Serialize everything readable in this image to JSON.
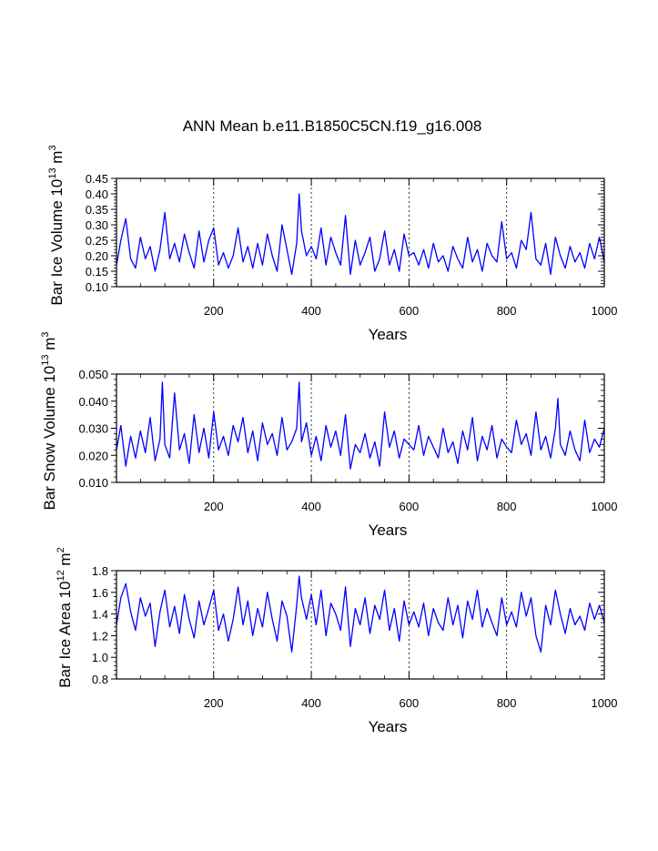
{
  "title": "ANN Mean b.e11.B1850C5CN.f19_g16.008",
  "colors": {
    "series": "#0000ff",
    "axis": "#000000",
    "grid": "#000000"
  },
  "chart_data": [
    {
      "type": "line",
      "ylabel": {
        "main": "Bar Ice Volume 10",
        "exp": "13",
        "unit": " m",
        "unitexp": "3"
      },
      "xlabel": "Years",
      "xlim": [
        1,
        1000
      ],
      "ylim": [
        0.1,
        0.45
      ],
      "xticks": [
        200,
        400,
        600,
        800,
        1000
      ],
      "xtick_labels": [
        "200",
        "400",
        "600",
        "800",
        "1000"
      ],
      "yticks": [
        0.1,
        0.15,
        0.2,
        0.25,
        0.3,
        0.35,
        0.4,
        0.45
      ],
      "ytick_labels": [
        "0.10",
        "0.15",
        "0.20",
        "0.25",
        "0.30",
        "0.35",
        "0.40",
        "0.45"
      ],
      "grid_x": [
        200,
        400,
        600,
        800
      ],
      "series": [
        {
          "name": "Bar Ice Volume",
          "x": [
            1,
            10,
            20,
            30,
            40,
            50,
            60,
            70,
            80,
            90,
            100,
            110,
            120,
            130,
            140,
            150,
            160,
            170,
            180,
            190,
            200,
            210,
            220,
            230,
            240,
            250,
            260,
            270,
            280,
            290,
            300,
            310,
            320,
            330,
            340,
            350,
            360,
            370,
            375,
            380,
            390,
            400,
            410,
            420,
            430,
            440,
            450,
            460,
            470,
            480,
            490,
            500,
            510,
            520,
            530,
            540,
            550,
            560,
            570,
            580,
            590,
            600,
            610,
            620,
            630,
            640,
            650,
            660,
            670,
            680,
            690,
            700,
            710,
            720,
            730,
            740,
            750,
            760,
            770,
            780,
            790,
            800,
            810,
            820,
            830,
            840,
            850,
            860,
            870,
            880,
            890,
            900,
            910,
            920,
            930,
            940,
            950,
            960,
            970,
            980,
            990,
            1000
          ],
          "y": [
            0.17,
            0.25,
            0.32,
            0.19,
            0.16,
            0.26,
            0.19,
            0.23,
            0.15,
            0.22,
            0.34,
            0.19,
            0.24,
            0.18,
            0.27,
            0.21,
            0.16,
            0.28,
            0.18,
            0.25,
            0.29,
            0.17,
            0.21,
            0.16,
            0.2,
            0.29,
            0.18,
            0.23,
            0.16,
            0.24,
            0.17,
            0.27,
            0.2,
            0.15,
            0.3,
            0.22,
            0.14,
            0.24,
            0.4,
            0.28,
            0.2,
            0.23,
            0.19,
            0.29,
            0.17,
            0.26,
            0.21,
            0.17,
            0.33,
            0.14,
            0.25,
            0.17,
            0.21,
            0.26,
            0.15,
            0.19,
            0.28,
            0.17,
            0.22,
            0.15,
            0.27,
            0.2,
            0.21,
            0.17,
            0.22,
            0.16,
            0.24,
            0.18,
            0.2,
            0.15,
            0.23,
            0.19,
            0.16,
            0.26,
            0.18,
            0.22,
            0.15,
            0.24,
            0.2,
            0.18,
            0.31,
            0.19,
            0.21,
            0.16,
            0.25,
            0.22,
            0.34,
            0.19,
            0.17,
            0.24,
            0.14,
            0.26,
            0.2,
            0.16,
            0.23,
            0.18,
            0.21,
            0.16,
            0.24,
            0.19,
            0.26,
            0.18
          ]
        }
      ]
    },
    {
      "type": "line",
      "ylabel": {
        "main": "Bar Snow Volume 10",
        "exp": "13",
        "unit": " m",
        "unitexp": "3"
      },
      "xlabel": "Years",
      "xlim": [
        1,
        1000
      ],
      "ylim": [
        0.01,
        0.05
      ],
      "xticks": [
        200,
        400,
        600,
        800,
        1000
      ],
      "xtick_labels": [
        "200",
        "400",
        "600",
        "800",
        "1000"
      ],
      "yticks": [
        0.01,
        0.02,
        0.03,
        0.04,
        0.05
      ],
      "ytick_labels": [
        "0.010",
        "0.020",
        "0.030",
        "0.040",
        "0.050"
      ],
      "grid_x": [
        200,
        400,
        600,
        800
      ],
      "series": [
        {
          "name": "Bar Snow Volume",
          "x": [
            1,
            10,
            20,
            30,
            40,
            50,
            60,
            70,
            80,
            90,
            95,
            100,
            110,
            120,
            130,
            140,
            150,
            160,
            170,
            180,
            190,
            200,
            210,
            220,
            230,
            240,
            250,
            260,
            270,
            280,
            290,
            300,
            310,
            320,
            330,
            340,
            350,
            360,
            370,
            375,
            380,
            390,
            400,
            410,
            420,
            430,
            440,
            450,
            460,
            470,
            480,
            490,
            500,
            510,
            520,
            530,
            540,
            550,
            560,
            570,
            580,
            590,
            600,
            610,
            620,
            630,
            640,
            650,
            660,
            670,
            680,
            690,
            700,
            710,
            720,
            730,
            740,
            750,
            760,
            770,
            780,
            790,
            800,
            810,
            820,
            830,
            840,
            850,
            860,
            870,
            880,
            890,
            900,
            905,
            910,
            920,
            930,
            940,
            950,
            960,
            970,
            980,
            990,
            1000
          ],
          "y": [
            0.022,
            0.031,
            0.016,
            0.027,
            0.019,
            0.029,
            0.021,
            0.034,
            0.018,
            0.026,
            0.047,
            0.024,
            0.019,
            0.043,
            0.022,
            0.028,
            0.017,
            0.035,
            0.021,
            0.03,
            0.019,
            0.036,
            0.022,
            0.027,
            0.02,
            0.031,
            0.025,
            0.034,
            0.021,
            0.029,
            0.018,
            0.032,
            0.024,
            0.028,
            0.02,
            0.034,
            0.022,
            0.025,
            0.03,
            0.047,
            0.025,
            0.032,
            0.02,
            0.027,
            0.018,
            0.031,
            0.023,
            0.029,
            0.02,
            0.035,
            0.015,
            0.024,
            0.021,
            0.028,
            0.019,
            0.025,
            0.016,
            0.036,
            0.023,
            0.029,
            0.019,
            0.026,
            0.024,
            0.022,
            0.031,
            0.02,
            0.027,
            0.023,
            0.019,
            0.03,
            0.021,
            0.025,
            0.017,
            0.029,
            0.022,
            0.034,
            0.018,
            0.027,
            0.022,
            0.031,
            0.019,
            0.026,
            0.023,
            0.021,
            0.033,
            0.024,
            0.028,
            0.02,
            0.036,
            0.022,
            0.027,
            0.019,
            0.03,
            0.041,
            0.024,
            0.02,
            0.029,
            0.022,
            0.018,
            0.033,
            0.021,
            0.026,
            0.023,
            0.03
          ]
        }
      ]
    },
    {
      "type": "line",
      "ylabel": {
        "main": "Bar Ice Area 10",
        "exp": "12",
        "unit": " m",
        "unitexp": "2"
      },
      "xlabel": "Years",
      "xlim": [
        1,
        1000
      ],
      "ylim": [
        0.8,
        1.8
      ],
      "xticks": [
        200,
        400,
        600,
        800,
        1000
      ],
      "xtick_labels": [
        "200",
        "400",
        "600",
        "800",
        "1000"
      ],
      "yticks": [
        0.8,
        1.0,
        1.2,
        1.4,
        1.6,
        1.8
      ],
      "ytick_labels": [
        "0.8",
        "1.0",
        "1.2",
        "1.4",
        "1.6",
        "1.8"
      ],
      "grid_x": [
        200,
        400,
        600,
        800
      ],
      "series": [
        {
          "name": "Bar Ice Area",
          "x": [
            1,
            10,
            20,
            30,
            40,
            50,
            60,
            70,
            80,
            90,
            100,
            110,
            120,
            130,
            140,
            150,
            160,
            170,
            180,
            190,
            200,
            210,
            220,
            230,
            240,
            250,
            260,
            270,
            280,
            290,
            300,
            310,
            320,
            330,
            340,
            350,
            360,
            370,
            375,
            380,
            390,
            400,
            410,
            420,
            430,
            440,
            450,
            460,
            470,
            480,
            490,
            500,
            510,
            520,
            530,
            540,
            550,
            560,
            570,
            580,
            590,
            600,
            610,
            620,
            630,
            640,
            650,
            660,
            670,
            680,
            690,
            700,
            710,
            720,
            730,
            740,
            750,
            760,
            770,
            780,
            790,
            800,
            810,
            820,
            830,
            840,
            850,
            860,
            870,
            880,
            890,
            900,
            910,
            920,
            930,
            940,
            950,
            960,
            970,
            980,
            990,
            1000
          ],
          "y": [
            1.3,
            1.55,
            1.68,
            1.42,
            1.25,
            1.55,
            1.38,
            1.5,
            1.1,
            1.42,
            1.62,
            1.28,
            1.47,
            1.22,
            1.58,
            1.35,
            1.18,
            1.52,
            1.3,
            1.45,
            1.62,
            1.25,
            1.4,
            1.15,
            1.35,
            1.65,
            1.3,
            1.52,
            1.2,
            1.45,
            1.28,
            1.6,
            1.35,
            1.15,
            1.52,
            1.38,
            1.05,
            1.48,
            1.75,
            1.55,
            1.35,
            1.58,
            1.3,
            1.62,
            1.2,
            1.5,
            1.4,
            1.25,
            1.65,
            1.1,
            1.45,
            1.3,
            1.55,
            1.22,
            1.48,
            1.35,
            1.62,
            1.25,
            1.45,
            1.15,
            1.52,
            1.3,
            1.42,
            1.28,
            1.5,
            1.2,
            1.45,
            1.32,
            1.25,
            1.55,
            1.3,
            1.48,
            1.18,
            1.52,
            1.35,
            1.62,
            1.28,
            1.45,
            1.32,
            1.2,
            1.55,
            1.3,
            1.42,
            1.28,
            1.6,
            1.38,
            1.55,
            1.2,
            1.05,
            1.48,
            1.3,
            1.62,
            1.4,
            1.22,
            1.45,
            1.3,
            1.38,
            1.25,
            1.5,
            1.35,
            1.48,
            1.32
          ]
        }
      ]
    }
  ]
}
